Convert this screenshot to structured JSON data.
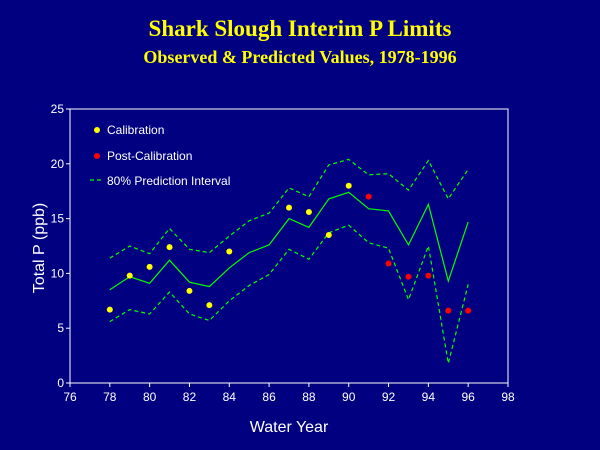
{
  "slide": {
    "title": "Shark Slough Interim P Limits",
    "subtitle": "Observed & Predicted Values, 1978-1996"
  },
  "colors": {
    "background": "#000080",
    "title": "#FFFF00",
    "calibration": "#FFFF00",
    "post_calibration": "#FF0000",
    "predicted_line": "#00FF00",
    "axis": "#FFFFFF"
  },
  "chart_data": {
    "type": "line",
    "title": "",
    "xlabel": "Water Year",
    "ylabel": "Total P (ppb)",
    "xlim": [
      76,
      98
    ],
    "ylim": [
      0,
      25
    ],
    "xticks": [
      76,
      78,
      80,
      82,
      84,
      86,
      88,
      90,
      92,
      94,
      96,
      98
    ],
    "yticks": [
      0,
      5,
      10,
      15,
      20,
      25
    ],
    "grid": false,
    "legend_position": "top-left",
    "legend": [
      {
        "label": "Calibration",
        "marker": "circle",
        "color": "#FFFF00"
      },
      {
        "label": "Post-Calibration",
        "marker": "circle",
        "color": "#FF0000"
      },
      {
        "label": "80% Prediction Interval",
        "marker": "dashed-line",
        "color": "#00FF00"
      }
    ],
    "series": [
      {
        "name": "Calibration",
        "kind": "scatter",
        "color": "#FFFF00",
        "x": [
          78,
          79,
          80,
          81,
          82,
          83,
          84,
          87,
          88,
          89,
          90
        ],
        "y": [
          6.7,
          9.8,
          10.6,
          12.4,
          8.4,
          7.1,
          12.0,
          16.0,
          15.6,
          13.5,
          18.0
        ]
      },
      {
        "name": "Post-Calibration",
        "kind": "scatter",
        "color": "#FF0000",
        "x": [
          91,
          92,
          93,
          94,
          95,
          96
        ],
        "y": [
          17.0,
          10.9,
          9.7,
          9.8,
          6.6,
          6.6
        ]
      },
      {
        "kind": "line",
        "style": "solid",
        "color": "#00FF00",
        "x": [
          78,
          79,
          80,
          81,
          82,
          83,
          84,
          85,
          86,
          87,
          88,
          89,
          90,
          91,
          92,
          93,
          94,
          95,
          96
        ],
        "y": [
          8.5,
          9.7,
          9.1,
          11.2,
          9.2,
          8.8,
          10.5,
          11.9,
          12.6,
          15.0,
          14.2,
          16.8,
          17.4,
          15.9,
          15.7,
          12.6,
          16.3,
          9.3,
          14.7
        ]
      },
      {
        "kind": "line",
        "style": "dashed",
        "color": "#00FF00",
        "x": [
          78,
          79,
          80,
          81,
          82,
          83,
          84,
          85,
          86,
          87,
          88,
          89,
          90,
          91,
          92,
          93,
          94,
          95,
          96
        ],
        "y": [
          11.4,
          12.5,
          11.8,
          14.1,
          12.2,
          11.9,
          13.4,
          14.8,
          15.5,
          17.8,
          17.0,
          19.9,
          20.4,
          19.0,
          19.1,
          17.6,
          20.3,
          16.8,
          19.5
        ]
      },
      {
        "kind": "line",
        "style": "dashed",
        "color": "#00FF00",
        "x": [
          78,
          79,
          80,
          81,
          82,
          83,
          84,
          85,
          86,
          87,
          88,
          89,
          90,
          91,
          92,
          93,
          94,
          95,
          96
        ],
        "y": [
          5.6,
          6.7,
          6.3,
          8.3,
          6.3,
          5.7,
          7.5,
          8.9,
          9.9,
          12.2,
          11.3,
          13.7,
          14.4,
          12.8,
          12.3,
          7.6,
          12.5,
          1.8,
          9.0
        ]
      }
    ]
  }
}
